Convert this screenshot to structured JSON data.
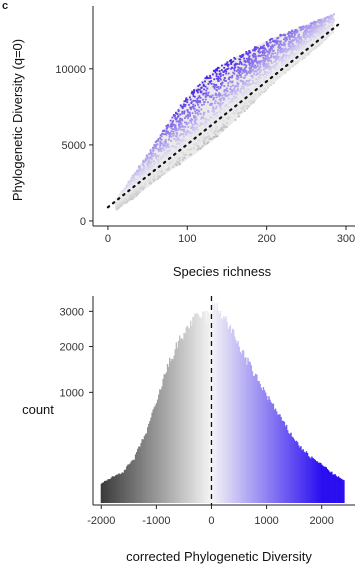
{
  "panel": {
    "letter": "c"
  },
  "chart_data": [
    {
      "type": "scatter",
      "xlabel": "Species richness",
      "ylabel": "Phylogenetic Diversity (q=0)",
      "xlim": [
        -10,
        300
      ],
      "ylim": [
        -200,
        14000
      ],
      "x_ticks": [
        0,
        100,
        200,
        300
      ],
      "y_ticks": [
        0,
        5000,
        10000
      ],
      "trend_line": {
        "style": "dotted",
        "color": "#111111",
        "x": [
          0,
          290
        ],
        "y": [
          900,
          12900
        ]
      },
      "color_scale": {
        "low": "#3a3a3a",
        "mid": "#f2f2f2",
        "high": "#4b22e8"
      },
      "series": [
        {
          "x": [
            10,
            30,
            50,
            70,
            90,
            110,
            130,
            150,
            170,
            190,
            210,
            230,
            250,
            270,
            285
          ],
          "y_upper": [
            1400,
            2900,
            4400,
            6000,
            7500,
            8800,
            9800,
            10500,
            11000,
            11600,
            12100,
            12500,
            12900,
            13300,
            13600
          ],
          "y_lower": [
            700,
            1400,
            2200,
            3000,
            3700,
            4400,
            5200,
            6100,
            7100,
            8100,
            9100,
            10000,
            10800,
            11700,
            12400
          ]
        }
      ]
    },
    {
      "type": "bar",
      "xlabel": "corrected Phylogenetic Diversity",
      "ylabel": "count",
      "xlim": [
        -2150,
        2550
      ],
      "ylim": [
        0,
        3500
      ],
      "y_scale": "sqrt",
      "x_ticks": [
        -2000,
        -1000,
        0,
        1000,
        2000
      ],
      "y_ticks": [
        1000,
        2000,
        3000
      ],
      "reference_line": {
        "x": 0,
        "style": "dashed"
      },
      "color_scale": {
        "low": "#3a3a3a",
        "mid": "#f5f5f5",
        "high": "#2b0ff0"
      },
      "bin_centers": [
        -2000,
        -1800,
        -1600,
        -1400,
        -1200,
        -1000,
        -800,
        -600,
        -400,
        -200,
        -50,
        50,
        200,
        400,
        600,
        800,
        1000,
        1200,
        1400,
        1600,
        1800,
        2000,
        2200,
        2400
      ],
      "counts": [
        30,
        55,
        80,
        160,
        380,
        800,
        1500,
        2100,
        2600,
        2900,
        2850,
        3200,
        2900,
        2300,
        1750,
        1300,
        950,
        650,
        420,
        260,
        170,
        120,
        70,
        40
      ]
    }
  ]
}
